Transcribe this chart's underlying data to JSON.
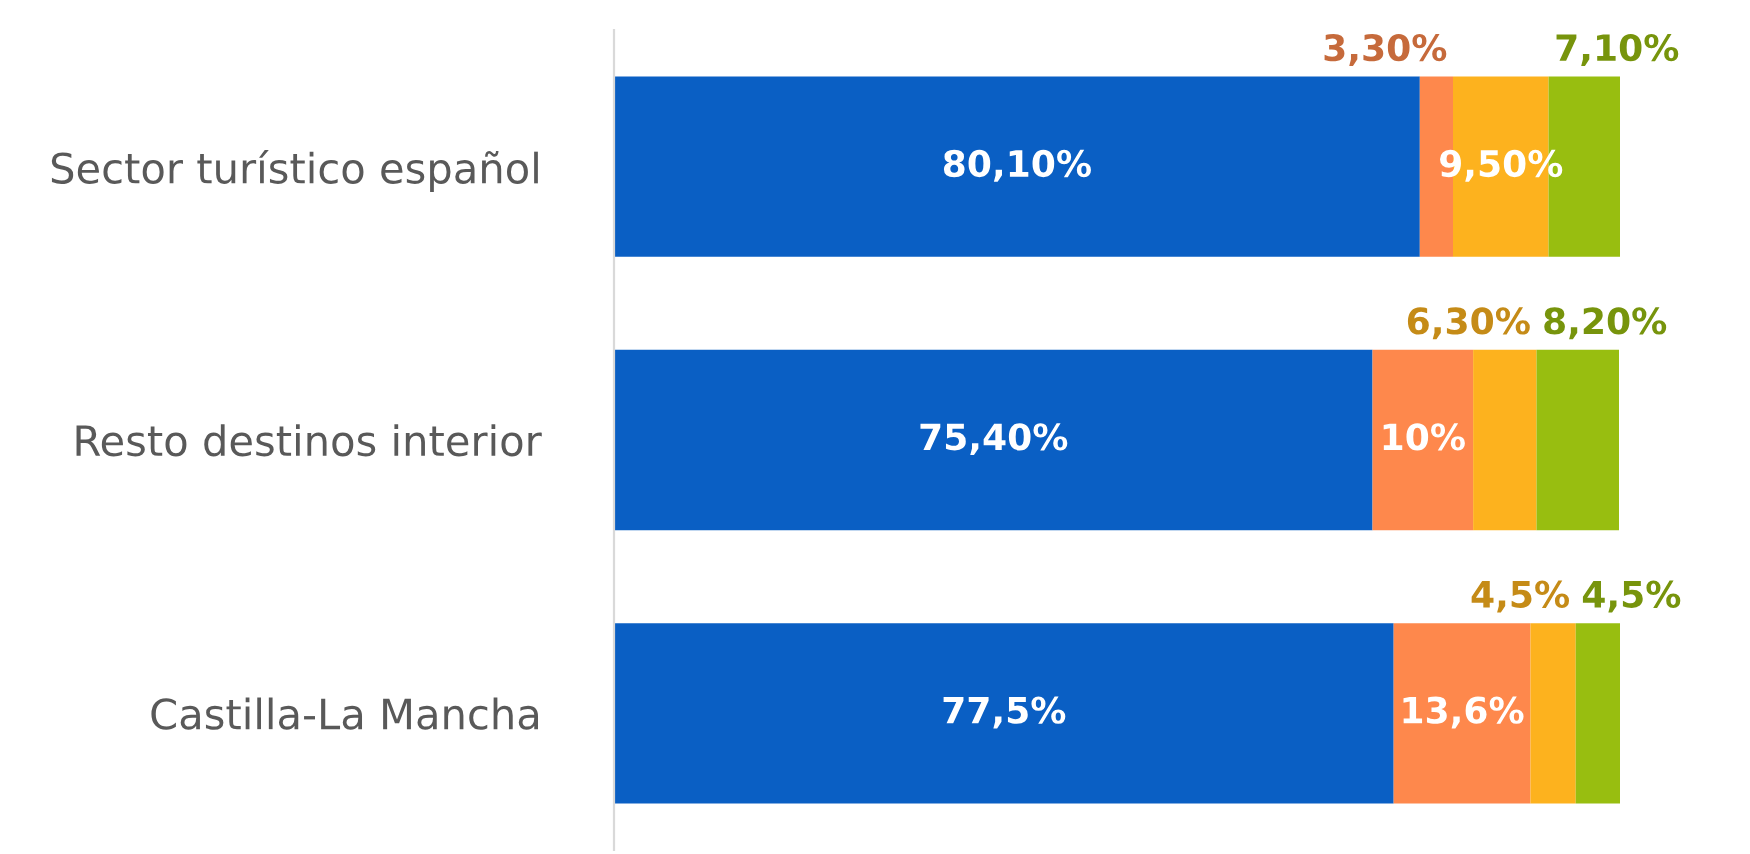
{
  "chart_data": {
    "type": "bar",
    "orientation": "horizontal",
    "stacked": true,
    "legend": false,
    "tick_labels": "y",
    "categories": [
      "Sector turístico español",
      "Resto destinos interior",
      "Castilla-La Mancha"
    ],
    "xlim": [
      0,
      100
    ],
    "series": [
      {
        "color": "#0a5fc4",
        "values": [
          80.1,
          75.4,
          77.5
        ],
        "value_labels": [
          "80,10%",
          "75,40%",
          "77,5%"
        ]
      },
      {
        "color": "#fe884c",
        "values": [
          3.3,
          10,
          13.6
        ],
        "value_labels": [
          "3,30%",
          "10%",
          "13,6%"
        ]
      },
      {
        "color": "#fdb21e",
        "values": [
          9.5,
          6.3,
          4.5
        ],
        "value_labels": [
          "9,50%",
          "6,30%",
          "4,5%"
        ]
      },
      {
        "color": "#98be10",
        "values": [
          7.1,
          8.2,
          4.5
        ],
        "value_labels": [
          "7,10%",
          "8,20%",
          "4,5%"
        ]
      }
    ]
  }
}
